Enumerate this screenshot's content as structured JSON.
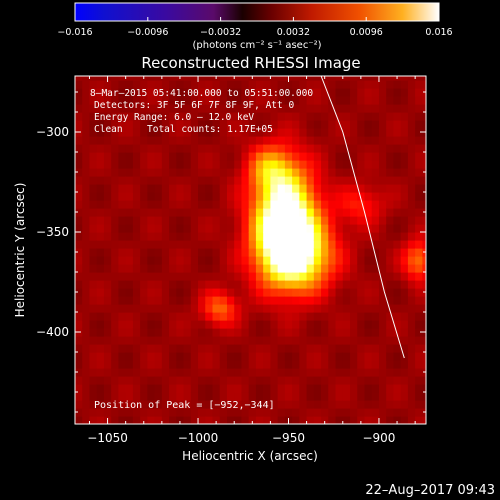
{
  "colorbar": {
    "ticks": [
      "−0.016",
      "−0.0096",
      "−0.0032",
      "0.0032",
      "0.0096",
      "0.016"
    ],
    "unit_label": "(photons cm⁻² s⁻¹ asec⁻²)",
    "range": [
      -0.016,
      0.016
    ]
  },
  "plot": {
    "title": "Reconstructed RHESSI Image",
    "info": {
      "time": "8–Mar–2015 05:41:00.000 to 05:51:00.000",
      "detectors": "Detectors: 3F 5F 6F 7F 8F 9F, Att 0",
      "energy": "Energy Range: 6.0 – 12.0 keV",
      "method": "Clean",
      "counts": "Total counts: 1.17E+05"
    },
    "peak_text": "Position of Peak = [−952,−344]"
  },
  "footer": {
    "timestamp": "22–Aug–2017 09:43"
  },
  "chart_data": {
    "type": "heatmap",
    "title": "Reconstructed RHESSI Image",
    "xlabel": "Heliocentric X (arcsec)",
    "ylabel": "Heliocentric Y (arcsec)",
    "xlim": [
      -1068,
      -874
    ],
    "ylim": [
      -446,
      -272
    ],
    "x_ticks": [
      -1050,
      -1000,
      -950,
      -900
    ],
    "y_ticks": [
      -300,
      -350,
      -400
    ],
    "x_tick_labels": [
      "−1050",
      "−1000",
      "−950",
      "−900"
    ],
    "y_tick_labels": [
      "−300",
      "−350",
      "−400"
    ],
    "colormap": "hot",
    "peak": {
      "x": -952,
      "y": -344
    },
    "sources": [
      {
        "x": -952,
        "y": -344,
        "sx": 12,
        "sy": 18,
        "amp": 0.015
      },
      {
        "x": -945,
        "y": -362,
        "sx": 14,
        "sy": 12,
        "amp": 0.0092
      },
      {
        "x": -960,
        "y": -318,
        "sx": 9,
        "sy": 8,
        "amp": 0.005
      },
      {
        "x": -988,
        "y": -388,
        "sx": 7,
        "sy": 6,
        "amp": 0.005
      },
      {
        "x": -910,
        "y": -336,
        "sx": 9,
        "sy": 7,
        "amp": 0.0032
      },
      {
        "x": -878,
        "y": -364,
        "sx": 6,
        "sy": 7,
        "amp": 0.0056
      }
    ],
    "background_level": 0.0045,
    "limb_curve": [
      [
        -932,
        -272
      ],
      [
        -920,
        -300
      ],
      [
        -908,
        -340
      ],
      [
        -897,
        -380
      ],
      [
        -886,
        -413
      ]
    ]
  }
}
